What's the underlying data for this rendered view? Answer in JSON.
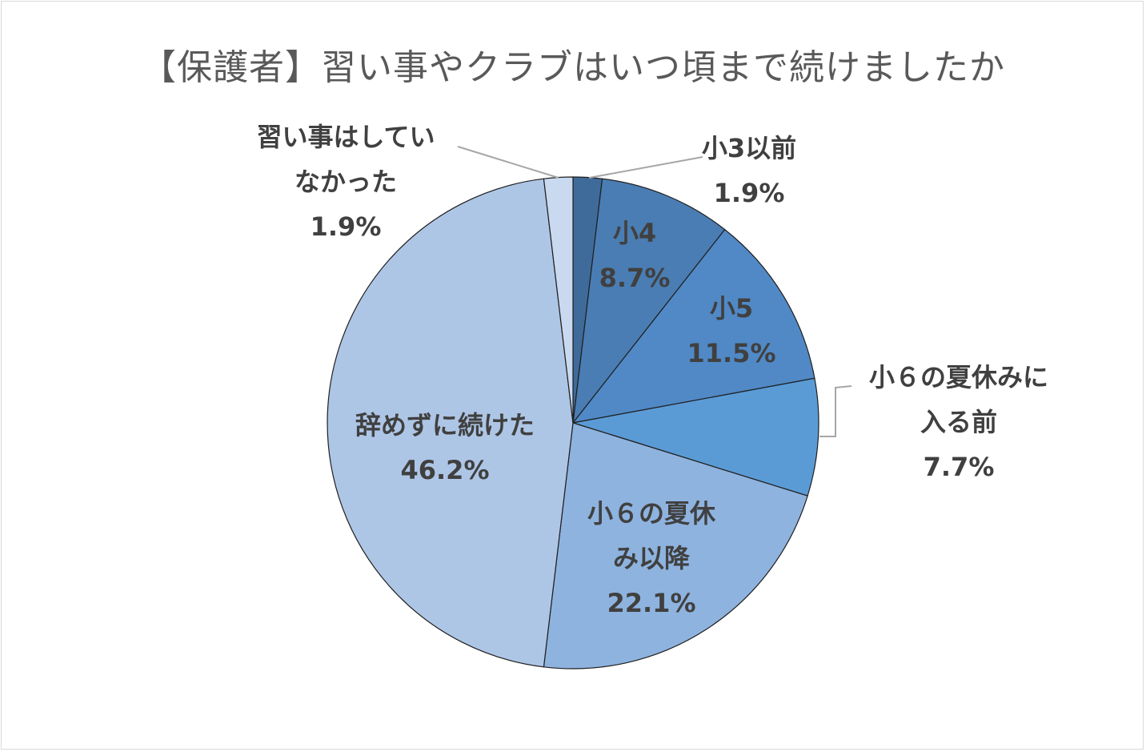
{
  "chart_data": {
    "type": "pie",
    "title": "【保護者】習い事やクラブはいつ頃まで続けましたか",
    "slices": [
      {
        "label_lines": [
          "小3以前"
        ],
        "percent_label": "1.9%",
        "value": 1.9,
        "color": "#3f6b9a"
      },
      {
        "label_lines": [
          "小4"
        ],
        "percent_label": "8.7%",
        "value": 8.7,
        "color": "#4a7db3"
      },
      {
        "label_lines": [
          "小5"
        ],
        "percent_label": "11.5%",
        "value": 11.5,
        "color": "#5089c6"
      },
      {
        "label_lines": [
          "小６の夏休みに",
          "入る前"
        ],
        "percent_label": "7.7%",
        "value": 7.7,
        "color": "#5b9bd5"
      },
      {
        "label_lines": [
          "小６の夏休",
          "み以降"
        ],
        "percent_label": "22.1%",
        "value": 22.1,
        "color": "#8eb3df"
      },
      {
        "label_lines": [
          "辞めずに続けた"
        ],
        "percent_label": "46.2%",
        "value": 46.2,
        "color": "#aec6e6"
      },
      {
        "label_lines": [
          "習い事はしてい",
          "なかった"
        ],
        "percent_label": "1.9%",
        "value": 1.9,
        "color": "#c9d9ef"
      }
    ],
    "start_angle_deg": 0,
    "direction": "clockwise",
    "legend": "none"
  }
}
